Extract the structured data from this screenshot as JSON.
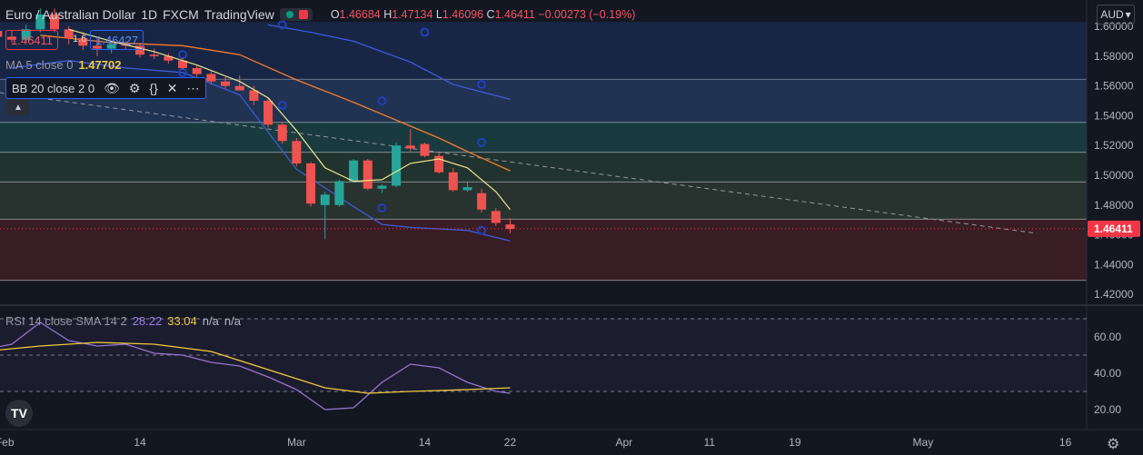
{
  "header": {
    "symbol": "Euro / Australian Dollar",
    "interval": "1D",
    "exchange": "FXCM",
    "source": "TradingView",
    "ohlc": {
      "o_label": "O",
      "o": "1.46684",
      "h_label": "H",
      "h": "1.47134",
      "l_label": "L",
      "l": "1.46096",
      "c_label": "C",
      "c": "1.46411",
      "change": "−0.00273 (−0.19%)"
    }
  },
  "quote": {
    "bid": "1.46411",
    "spread": "1.6",
    "ask": "1.46427"
  },
  "indicators": {
    "ma": {
      "label": "MA 5 close 0",
      "value": "1.47702"
    },
    "bb": {
      "label": "BB 20 close 2 0",
      "icons": [
        "eye-icon",
        "gear-icon",
        "braces-icon",
        "close-icon",
        "more-icon"
      ]
    },
    "rsi": {
      "label": "RSI 14 close SMA 14 2",
      "rsi_value": "28.22",
      "sma_value": "33.04",
      "na1": "n/a",
      "na2": "n/a"
    }
  },
  "currency_selector": "AUD",
  "logo_text": "TV",
  "colors": {
    "bg": "#131722",
    "up": "#26a69a",
    "down": "#ef5350",
    "ma": "#f0e68c",
    "bb_mid": "#f57c2a",
    "bb_band": "#3d5bd9",
    "rsi": "#9575cd",
    "rsi_sma": "#f0c93b",
    "price_line": "#f23645"
  },
  "chart_data": [
    {
      "type": "candlestick",
      "title": "Euro / Australian Dollar · 1D · FXCM",
      "ylim": [
        1.415,
        1.605
      ],
      "y_ticks": [
        "1.60000",
        "1.58000",
        "1.56000",
        "1.54000",
        "1.52000",
        "1.50000",
        "1.48000",
        "1.46000",
        "1.44000",
        "1.42000"
      ],
      "last_price_label": "1.46411",
      "x_ticks": [
        "Feb",
        "14",
        "Mar",
        "14",
        "22",
        "Apr",
        "11",
        "19",
        "May",
        "16"
      ],
      "candles": [
        [
          -1,
          1.597,
          1.6,
          1.591,
          1.593
        ],
        [
          0,
          1.593,
          1.597,
          1.589,
          1.591
        ],
        [
          1,
          1.591,
          1.601,
          1.589,
          1.598
        ],
        [
          2,
          1.598,
          1.612,
          1.596,
          1.608
        ],
        [
          3,
          1.608,
          1.612,
          1.596,
          1.598
        ],
        [
          4,
          1.598,
          1.6,
          1.588,
          1.592
        ],
        [
          5,
          1.592,
          1.596,
          1.584,
          1.587
        ],
        [
          6,
          1.587,
          1.592,
          1.58,
          1.585
        ],
        [
          7,
          1.585,
          1.59,
          1.582,
          1.588
        ],
        [
          8,
          1.588,
          1.59,
          1.584,
          1.587
        ],
        [
          9,
          1.587,
          1.589,
          1.579,
          1.581
        ],
        [
          10,
          1.581,
          1.585,
          1.578,
          1.58
        ],
        [
          11,
          1.58,
          1.582,
          1.575,
          1.577
        ],
        [
          12,
          1.577,
          1.579,
          1.571,
          1.572
        ],
        [
          13,
          1.572,
          1.574,
          1.566,
          1.568
        ],
        [
          14,
          1.568,
          1.57,
          1.561,
          1.563
        ],
        [
          15,
          1.563,
          1.566,
          1.558,
          1.56
        ],
        [
          16,
          1.56,
          1.567,
          1.557,
          1.557
        ],
        [
          17,
          1.557,
          1.56,
          1.547,
          1.55
        ],
        [
          18,
          1.55,
          1.552,
          1.532,
          1.534
        ],
        [
          19,
          1.534,
          1.536,
          1.521,
          1.523
        ],
        [
          20,
          1.523,
          1.525,
          1.506,
          1.508
        ],
        [
          21,
          1.508,
          1.509,
          1.479,
          1.481
        ],
        [
          22,
          1.48,
          1.489,
          1.457,
          1.487
        ],
        [
          23,
          1.48,
          1.497,
          1.479,
          1.496
        ],
        [
          24,
          1.496,
          1.511,
          1.495,
          1.51
        ],
        [
          25,
          1.51,
          1.511,
          1.49,
          1.491
        ],
        [
          26,
          1.491,
          1.494,
          1.488,
          1.493
        ],
        [
          27,
          1.493,
          1.522,
          1.492,
          1.52
        ],
        [
          28,
          1.52,
          1.531,
          1.516,
          1.518
        ],
        [
          29,
          1.521,
          1.522,
          1.512,
          1.513
        ],
        [
          30,
          1.513,
          1.516,
          1.501,
          1.502
        ],
        [
          31,
          1.502,
          1.505,
          1.489,
          1.49
        ],
        [
          32,
          1.49,
          1.496,
          1.489,
          1.492
        ],
        [
          33,
          1.488,
          1.491,
          1.475,
          1.477
        ],
        [
          34,
          1.476,
          1.478,
          1.466,
          1.468
        ],
        [
          35,
          1.467,
          1.471,
          1.461,
          1.464
        ]
      ],
      "ma5": [
        [
          4,
          1.598
        ],
        [
          7,
          1.59
        ],
        [
          10,
          1.583
        ],
        [
          13,
          1.574
        ],
        [
          16,
          1.563
        ],
        [
          18,
          1.552
        ],
        [
          20,
          1.53
        ],
        [
          22,
          1.505
        ],
        [
          24,
          1.496
        ],
        [
          26,
          1.497
        ],
        [
          28,
          1.508
        ],
        [
          30,
          1.511
        ],
        [
          32,
          1.505
        ],
        [
          34,
          1.489
        ],
        [
          35,
          1.477
        ]
      ],
      "bb_middle": [
        [
          2,
          1.594
        ],
        [
          7,
          1.589
        ],
        [
          12,
          1.587
        ],
        [
          16,
          1.581
        ],
        [
          20,
          1.564
        ],
        [
          24,
          1.549
        ],
        [
          28,
          1.533
        ],
        [
          30,
          1.525
        ],
        [
          32,
          1.516
        ],
        [
          35,
          1.503
        ]
      ],
      "bb_upper": [
        [
          18,
          1.601
        ],
        [
          21,
          1.596
        ],
        [
          24,
          1.59
        ],
        [
          28,
          1.576
        ],
        [
          31,
          1.561
        ],
        [
          35,
          1.551
        ]
      ],
      "bb_lower": [
        [
          0,
          1.572
        ],
        [
          4,
          1.577
        ],
        [
          8,
          1.572
        ],
        [
          12,
          1.569
        ],
        [
          16,
          1.554
        ],
        [
          20,
          1.504
        ],
        [
          24,
          1.479
        ],
        [
          26,
          1.467
        ],
        [
          28,
          1.465
        ],
        [
          32,
          1.463
        ],
        [
          35,
          1.456
        ]
      ],
      "dashed_trendline": [
        [
          -2,
          1.557
        ],
        [
          72,
          1.461
        ]
      ],
      "horizontal_levels": [
        1.5645,
        1.5355,
        1.5155,
        1.4955,
        1.4705,
        1.4295
      ],
      "level_zones": [
        {
          "from": 1.5645,
          "to": 1.5355,
          "color": "#2d4a7a"
        },
        {
          "from": 1.5355,
          "to": 1.5155,
          "color": "#1f5a5a"
        },
        {
          "from": 1.5155,
          "to": 1.4955,
          "color": "#2e4a38"
        },
        {
          "from": 1.4955,
          "to": 1.4705,
          "color": "#3b4a3a"
        },
        {
          "from": 1.4705,
          "to": 1.4295,
          "color": "#5a2328"
        }
      ]
    },
    {
      "type": "line",
      "title": "RSI 14 close SMA 14 2",
      "ylim": [
        14,
        76
      ],
      "y_ticks": [
        "60.00",
        "40.00",
        "20.00"
      ],
      "bands": [
        70,
        50,
        30
      ],
      "series": [
        {
          "name": "RSI",
          "points": [
            [
              -2,
              53
            ],
            [
              0,
              56
            ],
            [
              2,
              68
            ],
            [
              4,
              58
            ],
            [
              6,
              55
            ],
            [
              8,
              56
            ],
            [
              10,
              51
            ],
            [
              12,
              50
            ],
            [
              14,
              46
            ],
            [
              16,
              44
            ],
            [
              18,
              38
            ],
            [
              20,
              31
            ],
            [
              22,
              20
            ],
            [
              24,
              21
            ],
            [
              26,
              35
            ],
            [
              28,
              45
            ],
            [
              30,
              43
            ],
            [
              32,
              35
            ],
            [
              34,
              30
            ],
            [
              35,
              29
            ]
          ]
        },
        {
          "name": "RSI-based MA",
          "points": [
            [
              -2,
              52
            ],
            [
              2,
              55
            ],
            [
              6,
              57
            ],
            [
              10,
              56
            ],
            [
              14,
              52
            ],
            [
              18,
              42
            ],
            [
              22,
              32
            ],
            [
              25,
              29
            ],
            [
              28,
              30
            ],
            [
              32,
              31
            ],
            [
              35,
              32
            ]
          ]
        }
      ]
    }
  ]
}
